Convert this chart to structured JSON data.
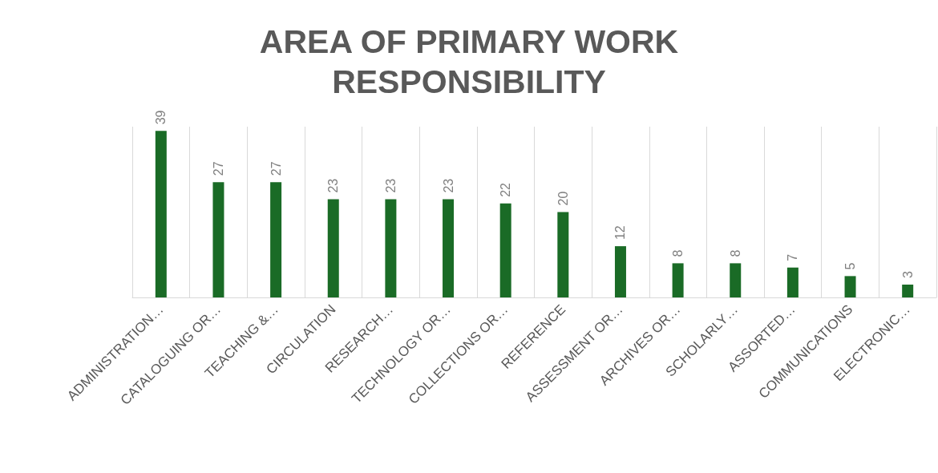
{
  "chart_data": {
    "type": "bar",
    "title": "AREA OF PRIMARY WORK\nRESPONSIBILITY",
    "categories": [
      "ADMINISTRATION…",
      "CATALOGUING OR…",
      "TEACHING &…",
      "CIRCULATION",
      "RESEARCH…",
      "TECHNOLOGY OR…",
      "COLLECTIONS OR…",
      "REFERENCE",
      "ASSESSMENT OR…",
      "ARCHIVES OR…",
      "SCHOLARLY…",
      "ASSORTED…",
      "COMMUNICATIONS",
      "ELECTRONIC…"
    ],
    "values": [
      39,
      27,
      27,
      23,
      23,
      23,
      22,
      20,
      12,
      8,
      8,
      7,
      5,
      3
    ],
    "color": "#1a6b26",
    "data_labels": true,
    "grid": "x"
  }
}
